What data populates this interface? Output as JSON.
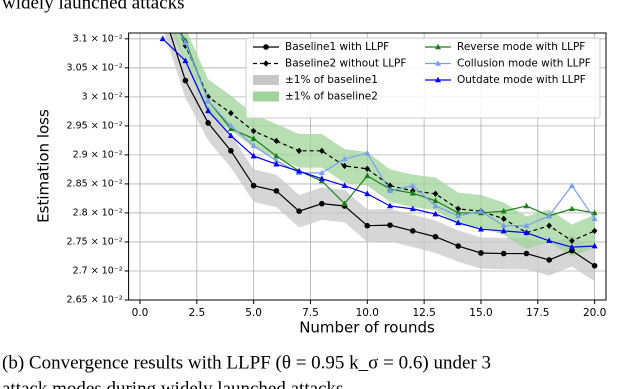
{
  "header_text": "widely launched attacks",
  "caption": [
    "(b) Convergence results with LLPF (θ = 0.95 k_σ = 0.6) under 3",
    "attack modes during widely launched attacks"
  ],
  "chart_data": {
    "type": "line",
    "xlabel": "Number of rounds",
    "ylabel": "Estimation loss",
    "x": [
      1,
      2,
      3,
      4,
      5,
      6,
      7,
      8,
      9,
      10,
      11,
      12,
      13,
      14,
      15,
      16,
      17,
      18,
      19,
      20
    ],
    "xlim": [
      -0.5,
      20.5
    ],
    "xticks": [
      {
        "value": 0,
        "label": "0.0"
      },
      2.5,
      {
        "value": 5,
        "label": "5.0"
      },
      7.5,
      {
        "value": 10,
        "label": "10.0"
      },
      12.5,
      {
        "value": 15,
        "label": "15.0"
      },
      17.5,
      {
        "value": 20,
        "label": "20.0"
      }
    ],
    "ylim": [
      0.0265,
      0.0311
    ],
    "yticks": [
      {
        "value": 0.0265,
        "label": "2.65 × 10⁻²"
      },
      {
        "value": 0.027,
        "label": "2.7 × 10⁻²"
      },
      {
        "value": 0.0275,
        "label": "2.75 × 10⁻²"
      },
      {
        "value": 0.028,
        "label": "2.8 × 10⁻²"
      },
      {
        "value": 0.0285,
        "label": "2.85 × 10⁻²"
      },
      {
        "value": 0.029,
        "label": "2.9 × 10⁻²"
      },
      {
        "value": 0.0295,
        "label": "2.95 × 10⁻²"
      },
      {
        "value": 0.03,
        "label": "3 × 10⁻²"
      },
      {
        "value": 0.0305,
        "label": "3.05 × 10⁻²"
      },
      {
        "value": 0.031,
        "label": "3.1 × 10⁻²"
      }
    ],
    "grid": true,
    "legend": "upper right",
    "bands": [
      {
        "name": "±1% of baseline1",
        "color": "#c8c8c8",
        "lower": [
          0.03119,
          0.02998,
          0.02925,
          0.02878,
          0.02819,
          0.0281,
          0.02775,
          0.02788,
          0.02784,
          0.0275,
          0.02751,
          0.02741,
          0.02731,
          0.02716,
          0.02704,
          0.02703,
          0.02703,
          0.02692,
          0.02708,
          0.02682
        ],
        "upper": [
          0.03182,
          0.03058,
          0.02985,
          0.02936,
          0.02875,
          0.02866,
          0.02831,
          0.02844,
          0.0284,
          0.02806,
          0.02807,
          0.02797,
          0.02787,
          0.0277,
          0.02758,
          0.02757,
          0.02757,
          0.02746,
          0.02762,
          0.02736
        ]
      },
      {
        "name": "±1% of baseline2",
        "color": "#9fd49a",
        "lower": [
          0.03148,
          0.03057,
          0.0297,
          0.02942,
          0.02912,
          0.02895,
          0.02878,
          0.02878,
          0.02852,
          0.02847,
          0.02819,
          0.0281,
          0.02805,
          0.02779,
          0.02775,
          0.02762,
          0.02738,
          0.0275,
          0.02724,
          0.02741
        ],
        "upper": [
          0.03212,
          0.03119,
          0.0303,
          0.03002,
          0.0297,
          0.02953,
          0.02936,
          0.02936,
          0.0291,
          0.02905,
          0.02875,
          0.02866,
          0.02861,
          0.02835,
          0.02831,
          0.02818,
          0.02794,
          0.02806,
          0.0278,
          0.02797
        ]
      }
    ],
    "series": [
      {
        "name": "Baseline1 with LLPF",
        "color": "#000000",
        "style": "solid",
        "marker": "circle",
        "values": [
          0.0315,
          0.03028,
          0.02955,
          0.02907,
          0.02847,
          0.02838,
          0.02803,
          0.02816,
          0.02812,
          0.02778,
          0.02779,
          0.02769,
          0.02759,
          0.02743,
          0.02731,
          0.0273,
          0.0273,
          0.02719,
          0.02735,
          0.02709
        ]
      },
      {
        "name": "Baseline2 without LLPF",
        "color": "#000000",
        "style": "dashed",
        "marker": "diamond",
        "values": [
          0.0318,
          0.03088,
          0.03,
          0.02972,
          0.02941,
          0.02924,
          0.02907,
          0.02907,
          0.02881,
          0.02876,
          0.02847,
          0.02838,
          0.02833,
          0.02807,
          0.02803,
          0.0279,
          0.02766,
          0.02778,
          0.02752,
          0.02769
        ]
      },
      {
        "name": "Reverse mode with LLPF",
        "color": "#1a7f1a",
        "style": "solid",
        "marker": "triangle",
        "values": [
          0.0316,
          0.03097,
          0.02993,
          0.02945,
          0.02928,
          0.02898,
          0.02872,
          0.02855,
          0.02816,
          0.02864,
          0.02841,
          0.02834,
          0.02821,
          0.028,
          0.028,
          0.02803,
          0.02812,
          0.02795,
          0.02807,
          0.028
        ]
      },
      {
        "name": "Collusion mode with LLPF",
        "color": "#7b9ff0",
        "style": "solid",
        "marker": "triangle",
        "values": [
          0.0316,
          0.03093,
          0.02993,
          0.0295,
          0.02916,
          0.0289,
          0.02869,
          0.02869,
          0.02893,
          0.02903,
          0.02838,
          0.02847,
          0.02812,
          0.02795,
          0.02803,
          0.02778,
          0.02778,
          0.02795,
          0.02847,
          0.0279
        ]
      },
      {
        "name": "Outdate mode with LLPF",
        "color": "#0000ee",
        "style": "solid",
        "marker": "triangle",
        "values": [
          0.031,
          0.03062,
          0.02976,
          0.02933,
          0.02898,
          0.02884,
          0.02872,
          0.02859,
          0.02847,
          0.02833,
          0.02812,
          0.02807,
          0.02798,
          0.02783,
          0.02772,
          0.02769,
          0.02766,
          0.02752,
          0.02741,
          0.02743
        ]
      }
    ]
  }
}
